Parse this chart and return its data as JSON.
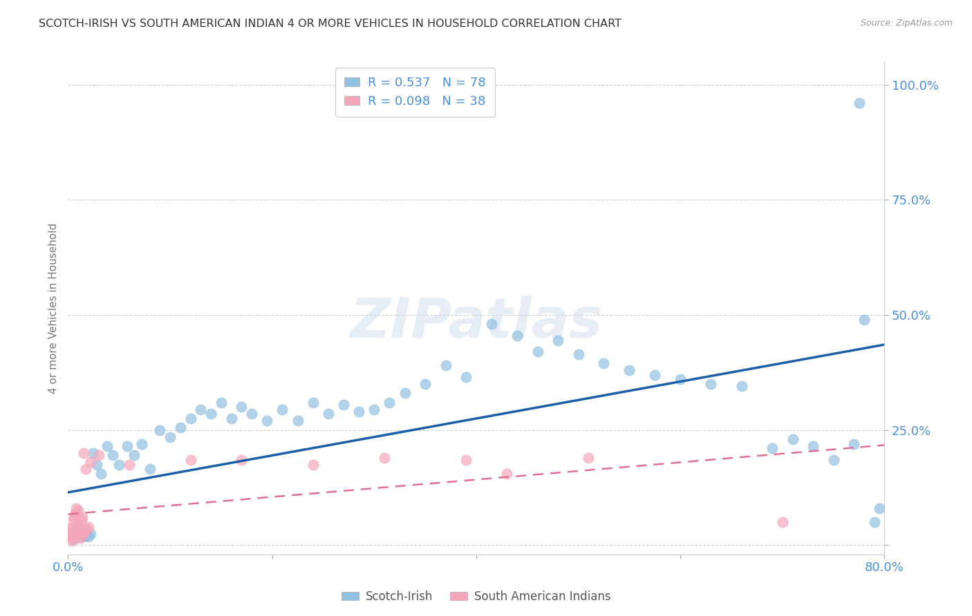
{
  "title": "SCOTCH-IRISH VS SOUTH AMERICAN INDIAN 4 OR MORE VEHICLES IN HOUSEHOLD CORRELATION CHART",
  "source": "Source: ZipAtlas.com",
  "ylabel_text": "4 or more Vehicles in Household",
  "xmin": 0.0,
  "xmax": 0.8,
  "ymin": -0.02,
  "ymax": 1.05,
  "x_ticks": [
    0.0,
    0.2,
    0.4,
    0.6,
    0.8
  ],
  "x_tick_labels": [
    "0.0%",
    "",
    "",
    "",
    "80.0%"
  ],
  "y_ticks": [
    0.0,
    0.25,
    0.5,
    0.75,
    1.0
  ],
  "y_tick_labels": [
    "",
    "25.0%",
    "50.0%",
    "75.0%",
    "100.0%"
  ],
  "scotch_irish_R": 0.537,
  "scotch_irish_N": 78,
  "south_american_R": 0.098,
  "south_american_N": 38,
  "scotch_color": "#92c0e0",
  "south_color": "#f4a7b9",
  "scotch_line_color": "#1a5fa8",
  "south_line_color": "#e07090",
  "watermark": "ZIPatlas",
  "scotch_irish_x": [
    0.002,
    0.003,
    0.004,
    0.004,
    0.005,
    0.005,
    0.006,
    0.006,
    0.007,
    0.007,
    0.008,
    0.008,
    0.009,
    0.01,
    0.01,
    0.011,
    0.012,
    0.013,
    0.014,
    0.015,
    0.016,
    0.017,
    0.018,
    0.02,
    0.022,
    0.025,
    0.028,
    0.032,
    0.038,
    0.044,
    0.05,
    0.058,
    0.065,
    0.072,
    0.08,
    0.09,
    0.1,
    0.11,
    0.12,
    0.13,
    0.14,
    0.15,
    0.16,
    0.17,
    0.18,
    0.195,
    0.21,
    0.225,
    0.24,
    0.255,
    0.27,
    0.285,
    0.3,
    0.315,
    0.33,
    0.35,
    0.37,
    0.39,
    0.415,
    0.44,
    0.46,
    0.48,
    0.5,
    0.525,
    0.55,
    0.575,
    0.6,
    0.63,
    0.66,
    0.69,
    0.71,
    0.73,
    0.75,
    0.77,
    0.775,
    0.78,
    0.79,
    0.795
  ],
  "scotch_irish_y": [
    0.02,
    0.018,
    0.015,
    0.025,
    0.012,
    0.022,
    0.018,
    0.028,
    0.015,
    0.03,
    0.02,
    0.025,
    0.022,
    0.018,
    0.035,
    0.028,
    0.02,
    0.022,
    0.025,
    0.018,
    0.022,
    0.02,
    0.028,
    0.018,
    0.025,
    0.2,
    0.175,
    0.155,
    0.215,
    0.195,
    0.175,
    0.215,
    0.195,
    0.22,
    0.165,
    0.25,
    0.235,
    0.255,
    0.275,
    0.295,
    0.285,
    0.31,
    0.275,
    0.3,
    0.285,
    0.27,
    0.295,
    0.27,
    0.31,
    0.285,
    0.305,
    0.29,
    0.295,
    0.31,
    0.33,
    0.35,
    0.39,
    0.365,
    0.48,
    0.455,
    0.42,
    0.445,
    0.415,
    0.395,
    0.38,
    0.37,
    0.36,
    0.35,
    0.345,
    0.21,
    0.23,
    0.215,
    0.185,
    0.22,
    0.96,
    0.49,
    0.05,
    0.08
  ],
  "south_american_x": [
    0.001,
    0.002,
    0.002,
    0.003,
    0.004,
    0.004,
    0.005,
    0.005,
    0.006,
    0.006,
    0.007,
    0.007,
    0.008,
    0.008,
    0.009,
    0.01,
    0.01,
    0.011,
    0.012,
    0.013,
    0.014,
    0.015,
    0.015,
    0.016,
    0.017,
    0.018,
    0.02,
    0.022,
    0.03,
    0.06,
    0.12,
    0.17,
    0.24,
    0.31,
    0.39,
    0.43,
    0.51,
    0.7
  ],
  "south_american_y": [
    0.02,
    0.015,
    0.035,
    0.025,
    0.01,
    0.04,
    0.02,
    0.055,
    0.015,
    0.06,
    0.025,
    0.07,
    0.035,
    0.08,
    0.02,
    0.045,
    0.075,
    0.03,
    0.015,
    0.055,
    0.06,
    0.025,
    0.2,
    0.03,
    0.165,
    0.035,
    0.04,
    0.18,
    0.195,
    0.175,
    0.185,
    0.185,
    0.175,
    0.19,
    0.185,
    0.155,
    0.19,
    0.05
  ]
}
